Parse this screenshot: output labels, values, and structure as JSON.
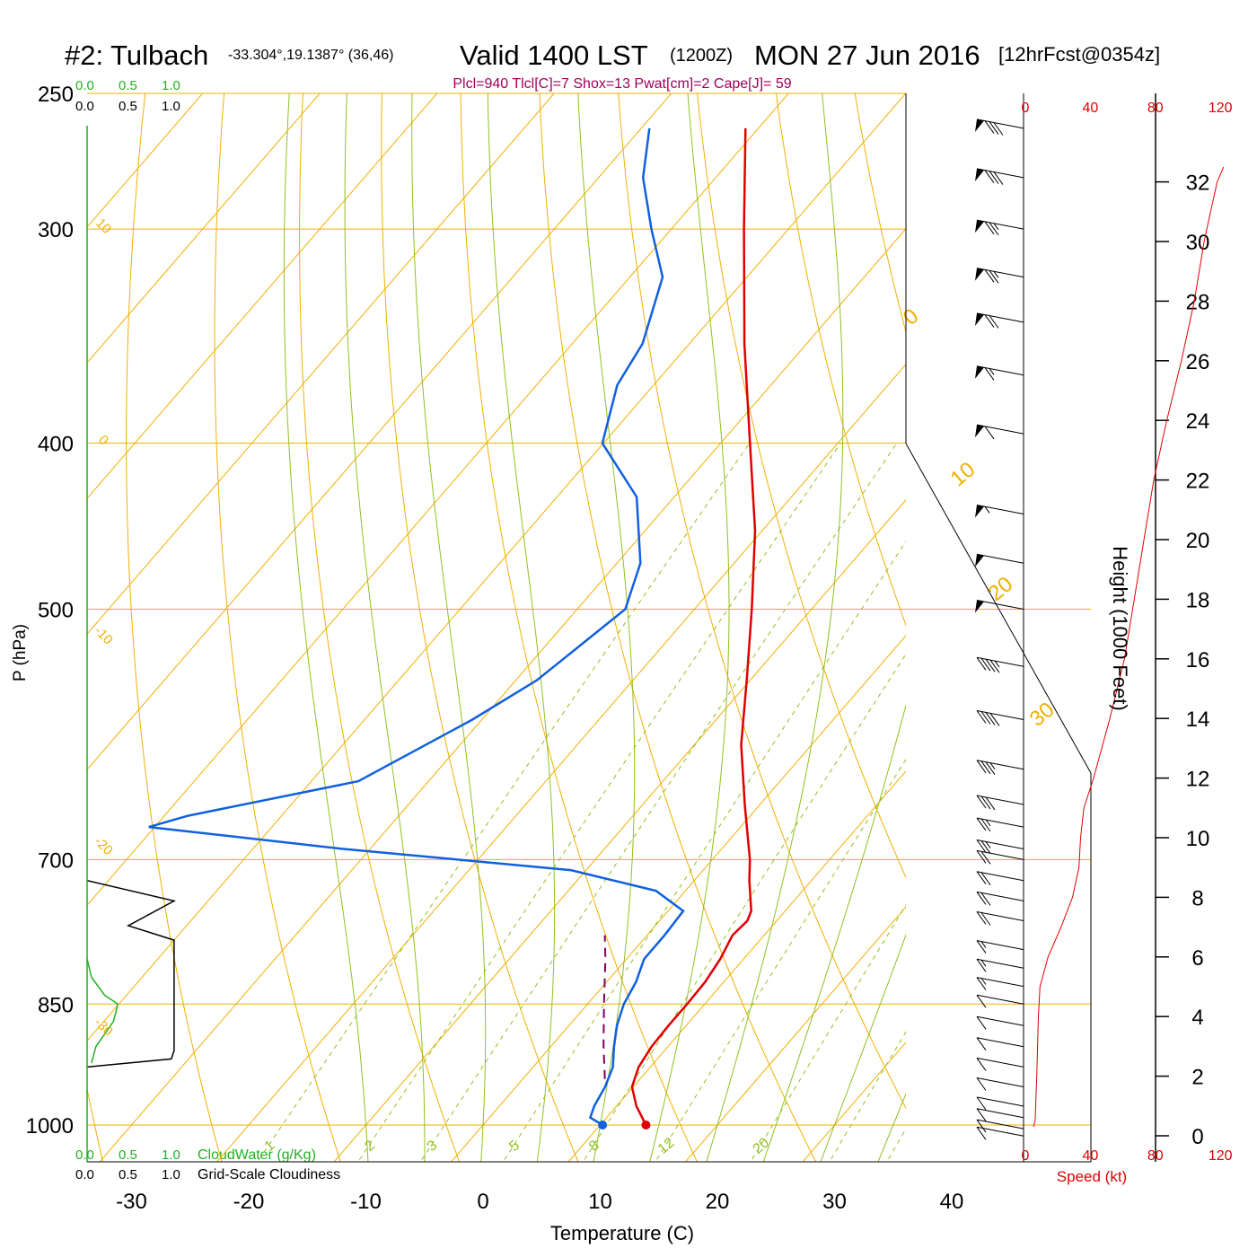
{
  "header": {
    "title_main": "#2: Tulbach",
    "title_coords": "-33.304°,19.1387° (36,46)",
    "title_valid": "Valid 1400 LST",
    "title_zulu": "(1200Z)",
    "title_date": "MON 27 Jun 2016",
    "title_fcst": "[12hrFcst@0354z]",
    "parcel_info": "Plcl=940 Tlcl[C]=7 Shox=13 Pwat[cm]=2 Cape[J]= 59"
  },
  "labels": {
    "ylabel": "P (hPa)",
    "xlabel": "Temperature (C)",
    "height_label": "Height (1000 Feet)",
    "speed_label": "Speed (kt)",
    "cloudwater_label": "CloudWater (g/Kg)",
    "cloudiness_label": "Grid-Scale Cloudiness"
  },
  "mini_axis": {
    "top_green": [
      "0.0",
      "0.5",
      "1.0"
    ],
    "top_black": [
      "0.0",
      "0.5",
      "1.0"
    ],
    "bottom_green": [
      "0.0",
      "0.5",
      "1.0"
    ],
    "bottom_black": [
      "0.0",
      "0.5",
      "1.0"
    ]
  },
  "colors": {
    "temperature": "#e00000",
    "dewpoint": "#1060e0",
    "parcel": "#800060",
    "isotherm": "#f0b000",
    "dry_adiabat": "#f0b000",
    "moist_adiabat": "#90c020",
    "mixing_ratio": "#90c020",
    "cloudwater": "#20b020",
    "speed": "#e00000",
    "header_purple": "#a0005a"
  },
  "chart_data": {
    "type": "line",
    "skew_t": true,
    "pressure_levels": [
      250,
      300,
      400,
      500,
      700,
      850,
      1000
    ],
    "pressure_tick_labels": [
      "250",
      "300",
      "400",
      "500",
      "700",
      "850",
      "1000"
    ],
    "temperature_ticks": [
      -30,
      -20,
      -10,
      0,
      10,
      20,
      30,
      40
    ],
    "temperature_tick_labels": [
      "-30",
      "-20",
      "-10",
      "0",
      "10",
      "20",
      "30",
      "40"
    ],
    "height_ticks": [
      0,
      2,
      4,
      6,
      8,
      10,
      12,
      14,
      16,
      18,
      20,
      22,
      24,
      26,
      28,
      30,
      32
    ],
    "height_tick_labels": [
      "0",
      "2",
      "4",
      "6",
      "8",
      "10",
      "12",
      "14",
      "16",
      "18",
      "20",
      "22",
      "24",
      "26",
      "28",
      "30",
      "32"
    ],
    "speed_ticks": [
      0,
      40,
      80,
      120
    ],
    "speed_tick_labels": [
      "0",
      "40",
      "80",
      "120"
    ],
    "isotherm_labels": [
      {
        "text": "10",
        "temp": -30,
        "p": 300
      },
      {
        "text": "0",
        "temp": -30,
        "p": 400
      },
      {
        "text": "-10",
        "temp": -30,
        "p": 520
      },
      {
        "text": "-20",
        "temp": -30,
        "p": 690
      },
      {
        "text": "-30",
        "temp": -30,
        "p": 880
      },
      {
        "text": "0",
        "temp": 36,
        "p": 340
      },
      {
        "text": "10",
        "temp": 36,
        "p": 420
      },
      {
        "text": "20",
        "temp": 36,
        "p": 490
      },
      {
        "text": "30",
        "temp": 36,
        "p": 580
      }
    ],
    "mixing_ratio_labels": [
      "1",
      "2",
      "3",
      "5",
      "8",
      "12",
      "20"
    ],
    "series": [
      {
        "name": "temperature",
        "points": [
          {
            "p": 1000,
            "t": 13.9
          },
          {
            "p": 975,
            "t": 11.7
          },
          {
            "p": 950,
            "t": 9.9
          },
          {
            "p": 925,
            "t": 9.0
          },
          {
            "p": 900,
            "t": 8.6
          },
          {
            "p": 875,
            "t": 8.5
          },
          {
            "p": 850,
            "t": 8.5
          },
          {
            "p": 825,
            "t": 8.4
          },
          {
            "p": 800,
            "t": 8.0
          },
          {
            "p": 775,
            "t": 7.3
          },
          {
            "p": 760,
            "t": 7.5
          },
          {
            "p": 750,
            "t": 7.1
          },
          {
            "p": 720,
            "t": 4.7
          },
          {
            "p": 700,
            "t": 3.2
          },
          {
            "p": 650,
            "t": -1.3
          },
          {
            "p": 600,
            "t": -6.0
          },
          {
            "p": 550,
            "t": -10.3
          },
          {
            "p": 500,
            "t": -15.1
          },
          {
            "p": 450,
            "t": -20.6
          },
          {
            "p": 400,
            "t": -27.5
          },
          {
            "p": 350,
            "t": -35.3
          },
          {
            "p": 300,
            "t": -43.8
          },
          {
            "p": 262,
            "t": -51.1
          }
        ]
      },
      {
        "name": "dewpoint",
        "points": [
          {
            "p": 1000,
            "t": 10.2
          },
          {
            "p": 990,
            "t": 8.6
          },
          {
            "p": 975,
            "t": 8.1
          },
          {
            "p": 950,
            "t": 7.6
          },
          {
            "p": 925,
            "t": 6.8
          },
          {
            "p": 900,
            "t": 5.4
          },
          {
            "p": 875,
            "t": 4.1
          },
          {
            "p": 850,
            "t": 3.1
          },
          {
            "p": 825,
            "t": 2.5
          },
          {
            "p": 800,
            "t": 1.5
          },
          {
            "p": 775,
            "t": 1.5
          },
          {
            "p": 750,
            "t": 1.3
          },
          {
            "p": 730,
            "t": -2.5
          },
          {
            "p": 710,
            "t": -11.3
          },
          {
            "p": 690,
            "t": -32.3
          },
          {
            "p": 670,
            "t": -50.5
          },
          {
            "p": 660,
            "t": -48.0
          },
          {
            "p": 630,
            "t": -36.0
          },
          {
            "p": 580,
            "t": -30.8
          },
          {
            "p": 550,
            "t": -28.2
          },
          {
            "p": 500,
            "t": -25.9
          },
          {
            "p": 470,
            "t": -28.0
          },
          {
            "p": 430,
            "t": -33.2
          },
          {
            "p": 400,
            "t": -40.1
          },
          {
            "p": 370,
            "t": -43.1
          },
          {
            "p": 350,
            "t": -44.0
          },
          {
            "p": 320,
            "t": -47.2
          },
          {
            "p": 300,
            "t": -51.7
          },
          {
            "p": 280,
            "t": -56.2
          },
          {
            "p": 262,
            "t": -59.3
          }
        ]
      },
      {
        "name": "parcel",
        "points": [
          {
            "p": 940,
            "t": 7.0
          },
          {
            "p": 900,
            "t": 4.5
          },
          {
            "p": 850,
            "t": 1.4
          },
          {
            "p": 800,
            "t": -1.8
          },
          {
            "p": 775,
            "t": -3.6
          }
        ]
      },
      {
        "name": "speed",
        "points": [
          {
            "h": 0.3,
            "v": 5
          },
          {
            "h": 0.5,
            "v": 6
          },
          {
            "h": 2,
            "v": 7
          },
          {
            "h": 4,
            "v": 8
          },
          {
            "h": 5,
            "v": 9
          },
          {
            "h": 6,
            "v": 14
          },
          {
            "h": 7,
            "v": 22
          },
          {
            "h": 8,
            "v": 29
          },
          {
            "h": 9,
            "v": 33
          },
          {
            "h": 10,
            "v": 34
          },
          {
            "h": 11,
            "v": 36
          },
          {
            "h": 12,
            "v": 42
          },
          {
            "h": 14,
            "v": 52
          },
          {
            "h": 16,
            "v": 61
          },
          {
            "h": 18,
            "v": 67
          },
          {
            "h": 20,
            "v": 73
          },
          {
            "h": 22,
            "v": 79
          },
          {
            "h": 24,
            "v": 87
          },
          {
            "h": 26,
            "v": 96
          },
          {
            "h": 28,
            "v": 104
          },
          {
            "h": 30,
            "v": 110
          },
          {
            "h": 32,
            "v": 118
          },
          {
            "h": 32.5,
            "v": 122
          }
        ]
      },
      {
        "name": "cloudwater",
        "points": [
          {
            "p": 800,
            "v": 0.0
          },
          {
            "p": 820,
            "v": 0.05
          },
          {
            "p": 840,
            "v": 0.2
          },
          {
            "p": 850,
            "v": 0.35
          },
          {
            "p": 870,
            "v": 0.3
          },
          {
            "p": 900,
            "v": 0.1
          },
          {
            "p": 920,
            "v": 0.05
          }
        ]
      },
      {
        "name": "cloudiness",
        "points": [
          {
            "p": 720,
            "v": 0.0
          },
          {
            "p": 740,
            "v": 0.95
          },
          {
            "p": 765,
            "v": 0.45
          },
          {
            "p": 780,
            "v": 0.95
          },
          {
            "p": 905,
            "v": 0.95
          },
          {
            "p": 915,
            "v": 0.92
          },
          {
            "p": 925,
            "v": 0.0
          }
        ]
      }
    ],
    "wind_barbs": [
      {
        "p": 262,
        "kt": 80
      },
      {
        "p": 280,
        "kt": 80
      },
      {
        "p": 300,
        "kt": 75
      },
      {
        "p": 320,
        "kt": 75
      },
      {
        "p": 340,
        "kt": 70
      },
      {
        "p": 365,
        "kt": 65
      },
      {
        "p": 395,
        "kt": 60
      },
      {
        "p": 440,
        "kt": 55
      },
      {
        "p": 470,
        "kt": 50
      },
      {
        "p": 500,
        "kt": 50
      },
      {
        "p": 540,
        "kt": 45
      },
      {
        "p": 580,
        "kt": 40
      },
      {
        "p": 620,
        "kt": 35
      },
      {
        "p": 650,
        "kt": 30
      },
      {
        "p": 670,
        "kt": 25
      },
      {
        "p": 690,
        "kt": 25
      },
      {
        "p": 700,
        "kt": 20
      },
      {
        "p": 720,
        "kt": 20
      },
      {
        "p": 740,
        "kt": 20
      },
      {
        "p": 760,
        "kt": 20
      },
      {
        "p": 790,
        "kt": 15
      },
      {
        "p": 810,
        "kt": 15
      },
      {
        "p": 830,
        "kt": 15
      },
      {
        "p": 850,
        "kt": 10
      },
      {
        "p": 875,
        "kt": 10
      },
      {
        "p": 900,
        "kt": 10
      },
      {
        "p": 925,
        "kt": 10
      },
      {
        "p": 950,
        "kt": 10
      },
      {
        "p": 975,
        "kt": 10
      },
      {
        "p": 990,
        "kt": 10
      },
      {
        "p": 1005,
        "kt": 10
      },
      {
        "p": 1015,
        "kt": 10
      }
    ],
    "surface_marks": [
      {
        "name": "surface-temp-dot",
        "p": 1000,
        "t": 13.9,
        "color": "#e00000"
      },
      {
        "name": "surface-dewpoint-dot",
        "p": 1000,
        "t": 10.2,
        "color": "#1060e0"
      }
    ]
  }
}
